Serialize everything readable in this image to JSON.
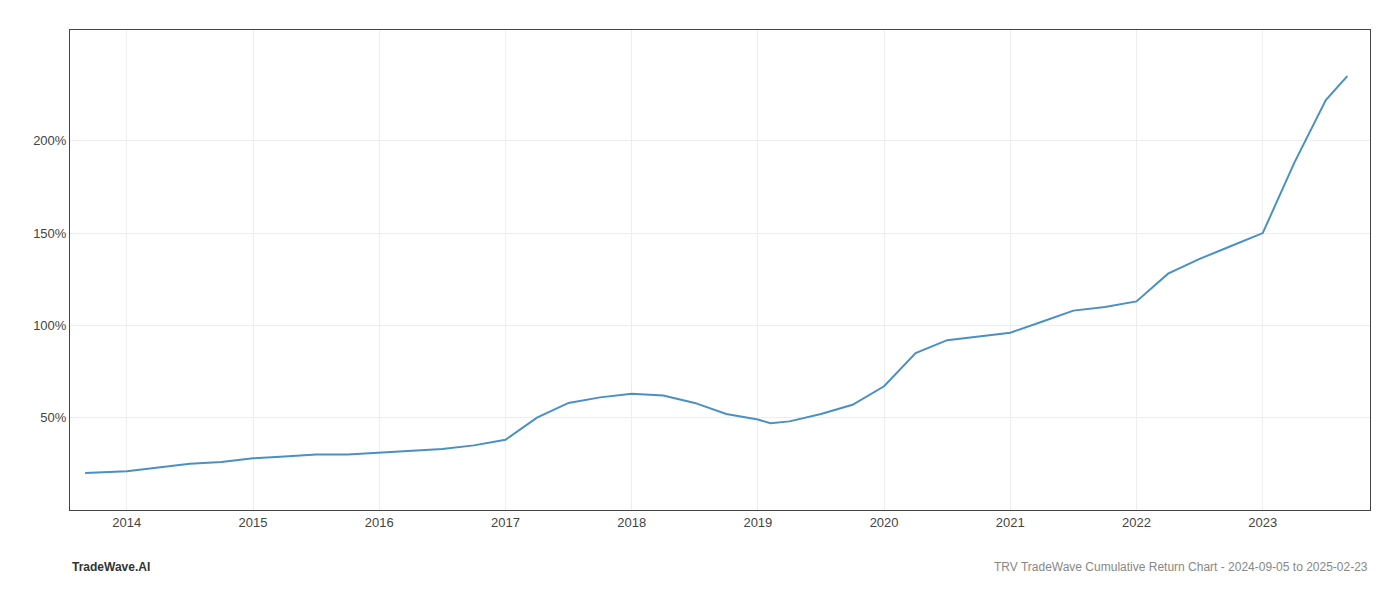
{
  "chart_data": {
    "type": "line",
    "x": [
      2013.67,
      2014.0,
      2014.25,
      2014.5,
      2014.75,
      2015.0,
      2015.25,
      2015.5,
      2015.75,
      2016.0,
      2016.25,
      2016.5,
      2016.75,
      2017.0,
      2017.25,
      2017.5,
      2017.75,
      2018.0,
      2018.25,
      2018.5,
      2018.75,
      2019.0,
      2019.1,
      2019.25,
      2019.5,
      2019.75,
      2020.0,
      2020.25,
      2020.5,
      2020.75,
      2021.0,
      2021.25,
      2021.5,
      2021.75,
      2022.0,
      2022.25,
      2022.5,
      2022.75,
      2023.0,
      2023.25,
      2023.5,
      2023.67
    ],
    "values": [
      20,
      21,
      23,
      25,
      26,
      28,
      29,
      30,
      30,
      31,
      32,
      33,
      35,
      38,
      50,
      58,
      61,
      63,
      62,
      58,
      52,
      49,
      47,
      48,
      52,
      57,
      67,
      85,
      92,
      94,
      96,
      102,
      108,
      110,
      113,
      128,
      136,
      143,
      150,
      188,
      222,
      235
    ],
    "color": "#4a90c4",
    "xlim": [
      2013.55,
      2023.85
    ],
    "xticks": [
      2014,
      2015,
      2016,
      2017,
      2018,
      2019,
      2020,
      2021,
      2022,
      2023
    ],
    "ylim": [
      0,
      260
    ],
    "yticks": [
      {
        "value": 50,
        "label": "50%"
      },
      {
        "value": 100,
        "label": "100%"
      },
      {
        "value": 150,
        "label": "150%"
      },
      {
        "value": 200,
        "label": "200%"
      }
    ],
    "grid": true,
    "annotations": [
      "TradeWave.AI",
      "TRV TradeWave Cumulative Return Chart - 2024-09-05 to 2025-02-23"
    ]
  }
}
